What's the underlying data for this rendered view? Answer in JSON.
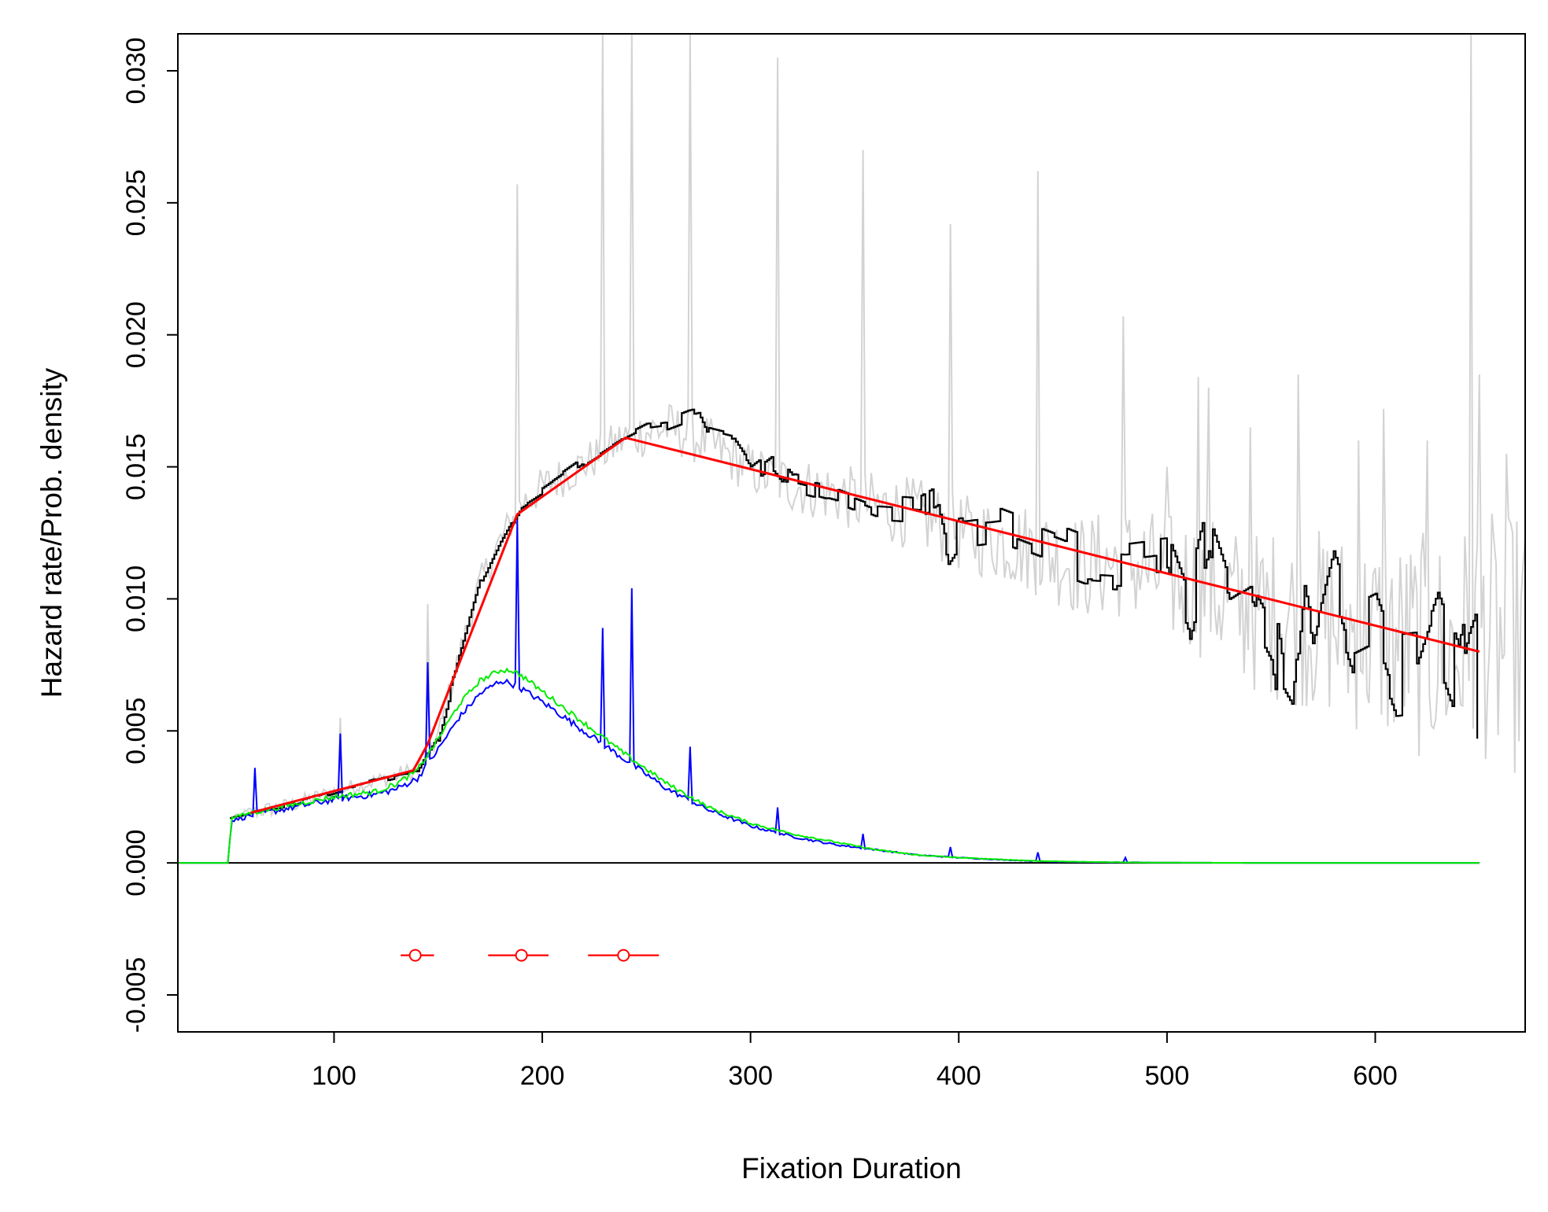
{
  "chart_data": {
    "type": "line",
    "xlabel": "Fixation Duration",
    "ylabel": "Hazard rate/Prob. density",
    "xlim": [
      25,
      672
    ],
    "ylim": [
      -0.0064,
      0.0314
    ],
    "x_ticks": [
      100,
      200,
      300,
      400,
      500,
      600
    ],
    "y_ticks": [
      -0.005,
      0.0,
      0.005,
      0.01,
      0.015,
      0.02,
      0.025,
      0.03
    ],
    "x_tick_labels": [
      "100",
      "200",
      "300",
      "400",
      "500",
      "600"
    ],
    "y_tick_labels": [
      "-0.005",
      "0.000",
      "0.005",
      "0.010",
      "0.015",
      "0.020",
      "0.025",
      "0.030"
    ],
    "grid": false,
    "legend": "none",
    "reference_line": {
      "y": 0,
      "x_range": [
        25,
        650
      ],
      "color": "#000000"
    },
    "colors": {
      "raw_hazard": "#d3d3d3",
      "smoothed_hazard": "#000000",
      "piecewise_fit": "#ff0000",
      "density_observed": "#0000ff",
      "density_smoothed": "#00ee00",
      "breakpoints": "#ff0000"
    },
    "raw_hazard": {
      "x": [
        50,
        60,
        80,
        100,
        120,
        140,
        150,
        160,
        170,
        180,
        190,
        200,
        220,
        240,
        260,
        280,
        300,
        320,
        340,
        360,
        380,
        400,
        420,
        440,
        460,
        480,
        500,
        520,
        540,
        560,
        580,
        600,
        620,
        640,
        650,
        660,
        672
      ],
      "y": [
        0.0017,
        0.0019,
        0.0022,
        0.0027,
        0.0031,
        0.0035,
        0.0048,
        0.0078,
        0.0106,
        0.0122,
        0.0136,
        0.0142,
        0.0151,
        0.0161,
        0.0165,
        0.0159,
        0.0149,
        0.0143,
        0.014,
        0.0135,
        0.0132,
        0.0125,
        0.0122,
        0.0118,
        0.0112,
        0.0114,
        0.0108,
        0.0104,
        0.0095,
        0.0094,
        0.009,
        0.0085,
        0.0082,
        0.008,
        0.009,
        0.008,
        0.0085
      ],
      "jitter": [
        0,
        0.0003,
        0.0003,
        0.0003,
        0.0003,
        0.0004,
        0.0005,
        0.0006,
        0.0006,
        0.0007,
        0.0007,
        0.0008,
        0.0008,
        0.0009,
        0.001,
        0.001,
        0.001,
        0.0011,
        0.0012,
        0.0013,
        0.0014,
        0.0015,
        0.0016,
        0.0018,
        0.002,
        0.0022,
        0.0025,
        0.0028,
        0.0031,
        0.0034,
        0.0037,
        0.004,
        0.0043,
        0.0046,
        0.0048,
        0.005,
        0.005
      ],
      "spikes": [
        [
          103,
          0.0055
        ],
        [
          145,
          0.0098
        ],
        [
          188,
          0.0257
        ],
        [
          229,
          0.0314
        ],
        [
          243,
          0.0314
        ],
        [
          271,
          0.0314
        ],
        [
          313,
          0.0305
        ],
        [
          354,
          0.027
        ],
        [
          396,
          0.0242
        ],
        [
          438,
          0.0262
        ],
        [
          479,
          0.0207
        ],
        [
          500,
          0.015
        ],
        [
          515,
          0.0184
        ],
        [
          520,
          0.018
        ],
        [
          540,
          0.0165
        ],
        [
          563,
          0.0185
        ],
        [
          592,
          0.016
        ],
        [
          604,
          0.0172
        ],
        [
          625,
          0.016
        ],
        [
          646,
          0.0314
        ],
        [
          650,
          0.0185
        ],
        [
          663,
          0.0155
        ]
      ]
    },
    "smoothed_hazard": {
      "x": [
        50,
        60,
        80,
        100,
        120,
        140,
        150,
        160,
        170,
        180,
        190,
        200,
        220,
        240,
        250,
        260,
        270,
        275,
        280,
        290,
        300,
        310,
        320,
        340,
        360,
        380,
        390,
        395,
        400,
        420,
        440,
        460,
        480,
        500,
        510,
        520,
        530,
        540,
        550,
        555,
        560,
        565,
        570,
        580,
        590,
        600,
        610,
        620,
        630,
        640,
        645,
        648,
        649
      ],
      "y": [
        0.0017,
        0.0019,
        0.0022,
        0.0027,
        0.0031,
        0.0035,
        0.0048,
        0.0078,
        0.0106,
        0.0122,
        0.0136,
        0.0141,
        0.0152,
        0.0162,
        0.0166,
        0.0167,
        0.017,
        0.0171,
        0.0162,
        0.016,
        0.0148,
        0.0154,
        0.0144,
        0.014,
        0.0134,
        0.0133,
        0.0138,
        0.012,
        0.0126,
        0.0128,
        0.0122,
        0.0116,
        0.0115,
        0.0117,
        0.0095,
        0.0127,
        0.0103,
        0.0108,
        0.0093,
        0.0065,
        0.0058,
        0.01,
        0.008,
        0.0112,
        0.0087,
        0.0091,
        0.0069,
        0.007,
        0.0093,
        0.0071,
        0.009,
        0.0097,
        0.005
      ],
      "jitter": [
        0,
        0.0001,
        0.0001,
        0.0001,
        0.0001,
        0.0001,
        0.0002,
        0.0002,
        0.0002,
        0.0002,
        0.0002,
        0.0002,
        0.0002,
        0.0002,
        0.0002,
        0.0003,
        0.0003,
        0.0003,
        0.0004,
        0.0004,
        0.0004,
        0.0005,
        0.0005,
        0.0005,
        0.0006,
        0.0006,
        0.0007,
        0.0008,
        0.0008,
        0.0009,
        0.001,
        0.0011,
        0.0012,
        0.0013,
        0.0014,
        0.0015,
        0.0016,
        0.0017,
        0.0018,
        0.0018,
        0.0018,
        0.0018,
        0.0018,
        0.0019,
        0.0019,
        0.0019,
        0.0019,
        0.0019,
        0.0019,
        0.0019,
        0.0019,
        0.0019,
        0
      ]
    },
    "piecewise_fit": {
      "x": [
        60,
        138,
        145,
        188,
        240,
        650
      ],
      "y": [
        0.0019,
        0.0035,
        0.0045,
        0.0132,
        0.0161,
        0.008
      ]
    },
    "density_observed": {
      "x": [
        25,
        49,
        50,
        51,
        60,
        80,
        100,
        120,
        130,
        140,
        150,
        160,
        170,
        180,
        185,
        190,
        200,
        220,
        240,
        260,
        280,
        300,
        320,
        340,
        360,
        380,
        400,
        420,
        440,
        460,
        480,
        500,
        550,
        600,
        650
      ],
      "y": [
        0,
        0,
        0.0009,
        0.0016,
        0.0018,
        0.0021,
        0.0024,
        0.0026,
        0.0028,
        0.0032,
        0.0043,
        0.0055,
        0.0064,
        0.0069,
        0.0068,
        0.0066,
        0.0061,
        0.005,
        0.0039,
        0.0028,
        0.002,
        0.0014,
        0.001,
        0.0007,
        0.0005,
        0.0003,
        0.0002,
        0.00012,
        6e-05,
        3e-05,
        2e-05,
        1e-05,
        0,
        0,
        0
      ],
      "jitter": [
        0,
        0,
        0,
        5e-05,
        0.00012,
        0.00012,
        0.00012,
        0.00012,
        0.00012,
        0.00012,
        0.00012,
        0.00012,
        0.00012,
        0.00012,
        0.00012,
        0.00012,
        0.00012,
        0.00012,
        0.00012,
        0.0001,
        8e-05,
        6e-05,
        5e-05,
        4e-05,
        3e-05,
        2e-05,
        2e-05,
        1e-05,
        1e-05,
        1e-05,
        1e-05,
        0,
        0,
        0,
        0
      ],
      "spikes": [
        [
          62,
          0.0036
        ],
        [
          103,
          0.0049
        ],
        [
          145,
          0.0076
        ],
        [
          188,
          0.013
        ],
        [
          229,
          0.0089
        ],
        [
          243,
          0.0104
        ],
        [
          271,
          0.0044
        ],
        [
          313,
          0.0021
        ],
        [
          354,
          0.0011
        ],
        [
          396,
          0.0006
        ],
        [
          438,
          0.0004
        ],
        [
          480,
          0.0002
        ]
      ]
    },
    "density_smoothed": {
      "x": [
        25,
        49,
        50,
        51,
        60,
        80,
        100,
        120,
        130,
        140,
        150,
        160,
        170,
        180,
        185,
        190,
        200,
        220,
        240,
        260,
        280,
        300,
        320,
        340,
        360,
        380,
        400,
        420,
        440,
        460,
        480,
        500,
        550,
        600,
        650
      ],
      "y": [
        0,
        0,
        0.0009,
        0.0017,
        0.0019,
        0.0022,
        0.0025,
        0.0027,
        0.003,
        0.0035,
        0.0047,
        0.006,
        0.0069,
        0.0073,
        0.0073,
        0.0071,
        0.0065,
        0.0053,
        0.0041,
        0.003,
        0.0021,
        0.0015,
        0.0011,
        0.0008,
        0.0005,
        0.0003,
        0.0002,
        0.00013,
        7e-05,
        4e-05,
        2e-05,
        1e-05,
        0,
        0,
        0
      ],
      "jitter": [
        0,
        0,
        0,
        4e-05,
        0.0001,
        0.0001,
        0.0001,
        0.0001,
        0.0001,
        0.0001,
        0.0001,
        0.0001,
        0.0001,
        0.0001,
        0.0001,
        0.0001,
        0.0001,
        0.0001,
        0.0001,
        8e-05,
        7e-05,
        5e-05,
        4e-05,
        3e-05,
        2e-05,
        2e-05,
        1e-05,
        1e-05,
        1e-05,
        0,
        0,
        0,
        0,
        0,
        0
      ]
    },
    "breakpoints": [
      {
        "x": 139,
        "y": -0.0035,
        "lo": 132,
        "hi": 148
      },
      {
        "x": 190,
        "y": -0.0035,
        "lo": 174,
        "hi": 203
      },
      {
        "x": 239,
        "y": -0.0035,
        "lo": 222,
        "hi": 256
      }
    ]
  }
}
